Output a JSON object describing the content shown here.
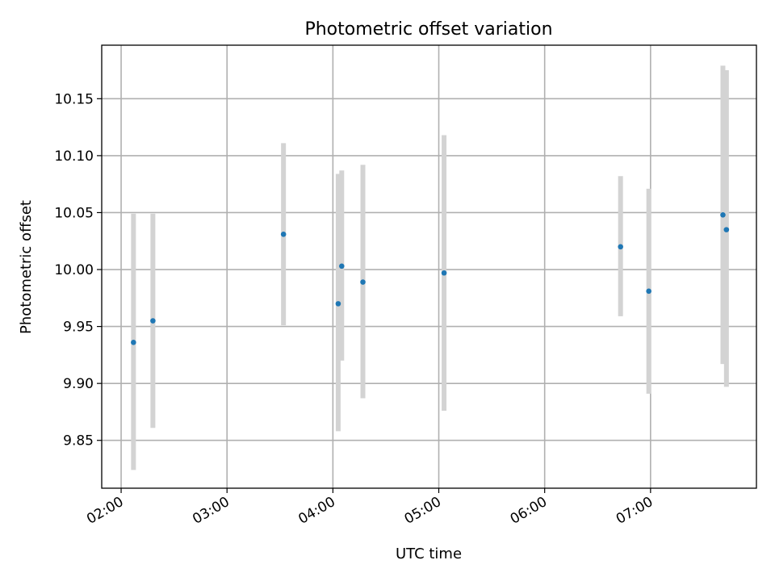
{
  "chart_data": {
    "type": "scatter",
    "title": "Photometric offset variation",
    "xlabel": "UTC time",
    "ylabel": "Photometric offset",
    "x_ticks": [
      "02:00",
      "03:00",
      "04:00",
      "05:00",
      "06:00",
      "07:00"
    ],
    "y_ticks": [
      "9.85",
      "9.90",
      "9.95",
      "10.00",
      "10.05",
      "10.10",
      "10.15"
    ],
    "xlim": [
      "01:49",
      "08:00"
    ],
    "ylim": [
      9.808,
      10.197
    ],
    "grid": true,
    "colors": {
      "point": "#1f77b4",
      "errorbar": "#d3d3d3"
    },
    "series": [
      {
        "points": [
          {
            "time": "02:07",
            "value": 9.936,
            "err_low": 9.824,
            "err_high": 10.049
          },
          {
            "time": "02:18",
            "value": 9.955,
            "err_low": 9.861,
            "err_high": 10.049
          },
          {
            "time": "03:32",
            "value": 10.031,
            "err_low": 9.951,
            "err_high": 10.111
          },
          {
            "time": "04:03",
            "value": 9.97,
            "err_low": 9.858,
            "err_high": 10.084
          },
          {
            "time": "04:05",
            "value": 10.003,
            "err_low": 9.92,
            "err_high": 10.087
          },
          {
            "time": "04:17",
            "value": 9.989,
            "err_low": 9.887,
            "err_high": 10.092
          },
          {
            "time": "05:03",
            "value": 9.997,
            "err_low": 9.876,
            "err_high": 10.118
          },
          {
            "time": "06:43",
            "value": 10.02,
            "err_low": 9.959,
            "err_high": 10.082
          },
          {
            "time": "06:59",
            "value": 9.981,
            "err_low": 9.891,
            "err_high": 10.071
          },
          {
            "time": "07:41",
            "value": 10.048,
            "err_low": 9.917,
            "err_high": 10.179
          },
          {
            "time": "07:43",
            "value": 10.035,
            "err_low": 9.897,
            "err_high": 10.175
          }
        ]
      }
    ]
  }
}
